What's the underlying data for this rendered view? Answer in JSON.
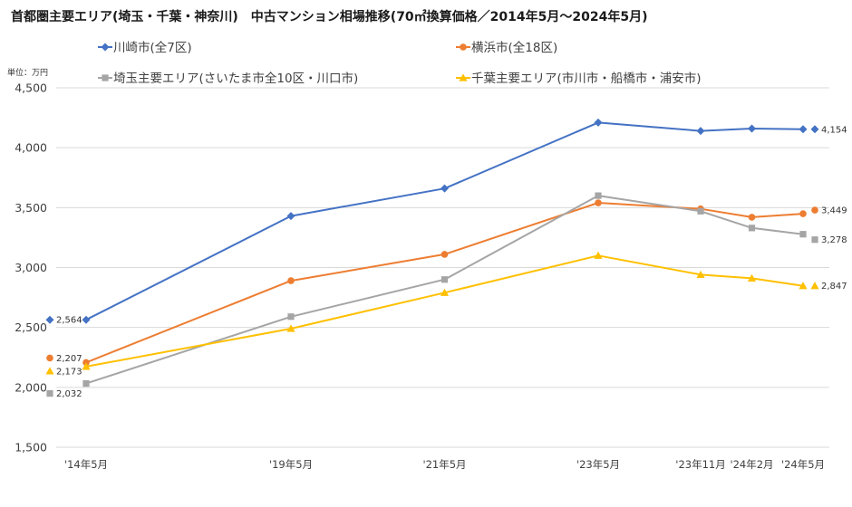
{
  "chart_data": {
    "type": "line",
    "title": "首都圏主要エリア(埼玉・千葉・神奈川)　中古マンション相場推移(70㎡換算価格／2014年5月～2024年5月)",
    "ylabel": "単位：万円",
    "xlabel": "",
    "categories": [
      "'14年5月",
      "'19年5月",
      "'21年5月",
      "'23年5月",
      "'23年11月",
      "'24年2月",
      "'24年5月"
    ],
    "ylim": [
      1500,
      4500
    ],
    "yticks": [
      1500,
      2000,
      2500,
      3000,
      3500,
      4000,
      4500
    ],
    "grid": true,
    "legend": "top",
    "series": [
      {
        "name": "川崎市(全7区)",
        "color": "#4472C4",
        "marker": "diamond",
        "values": [
          2564,
          3430,
          3660,
          4210,
          4140,
          4160,
          4154
        ]
      },
      {
        "name": "横浜市(全18区)",
        "color": "#ED7D31",
        "marker": "circle",
        "values": [
          2207,
          2890,
          3110,
          3540,
          3490,
          3420,
          3449
        ]
      },
      {
        "name": "埼玉主要エリア(さいたま市全10区・川口市)",
        "color": "#A5A5A5",
        "marker": "square",
        "values": [
          2032,
          2590,
          2900,
          3600,
          3470,
          3330,
          3278
        ]
      },
      {
        "name": "千葉主要エリア(市川市・船橋市・浦安市)",
        "color": "#FFC000",
        "marker": "triangle",
        "values": [
          2173,
          2490,
          2790,
          3100,
          2940,
          2910,
          2847
        ]
      }
    ]
  }
}
